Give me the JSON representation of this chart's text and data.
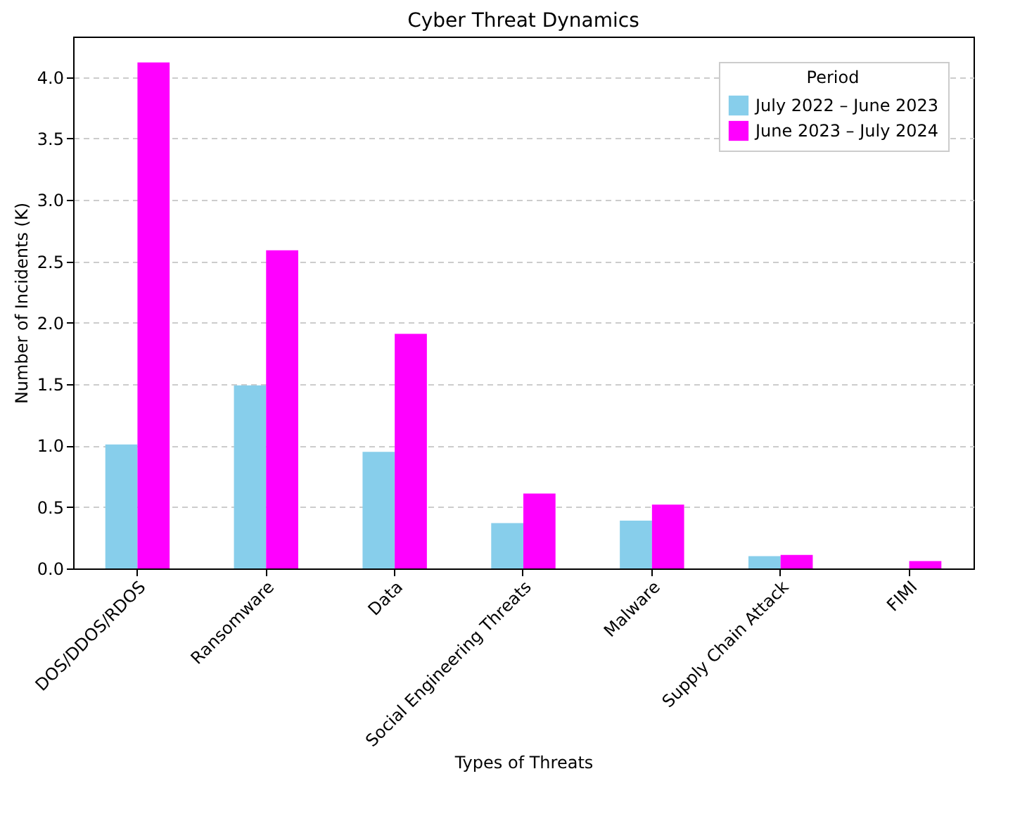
{
  "chart_data": {
    "type": "bar",
    "title": "Cyber Threat Dynamics",
    "xlabel": "Types of Threats",
    "ylabel": "Number of Incidents (K)",
    "legend_title": "Period",
    "categories": [
      "DOS/DDOS/RDOS",
      "Ransomware",
      "Data",
      "Social Engineering Threats",
      "Malware",
      "Supply Chain Attack",
      "FIMI"
    ],
    "series": [
      {
        "name": "July 2022 – June 2023",
        "color": "#87ceeb",
        "values": [
          1.01,
          1.49,
          0.95,
          0.37,
          0.39,
          0.1,
          null
        ]
      },
      {
        "name": "June 2023 – July 2024",
        "color": "#ff00ff",
        "values": [
          4.12,
          2.59,
          1.91,
          0.61,
          0.52,
          0.11,
          0.06
        ]
      }
    ],
    "ylim": [
      0,
      4.33
    ],
    "yticks": [
      {
        "value": 0,
        "label": "0.0"
      },
      0.5,
      {
        "value": 1,
        "label": "1.0"
      },
      1.5,
      {
        "value": 2,
        "label": "2.0"
      },
      2.5,
      {
        "value": 3,
        "label": "3.0"
      },
      3.5,
      {
        "value": 4,
        "label": "4.0"
      }
    ],
    "grid": "y",
    "legend": "top right"
  }
}
